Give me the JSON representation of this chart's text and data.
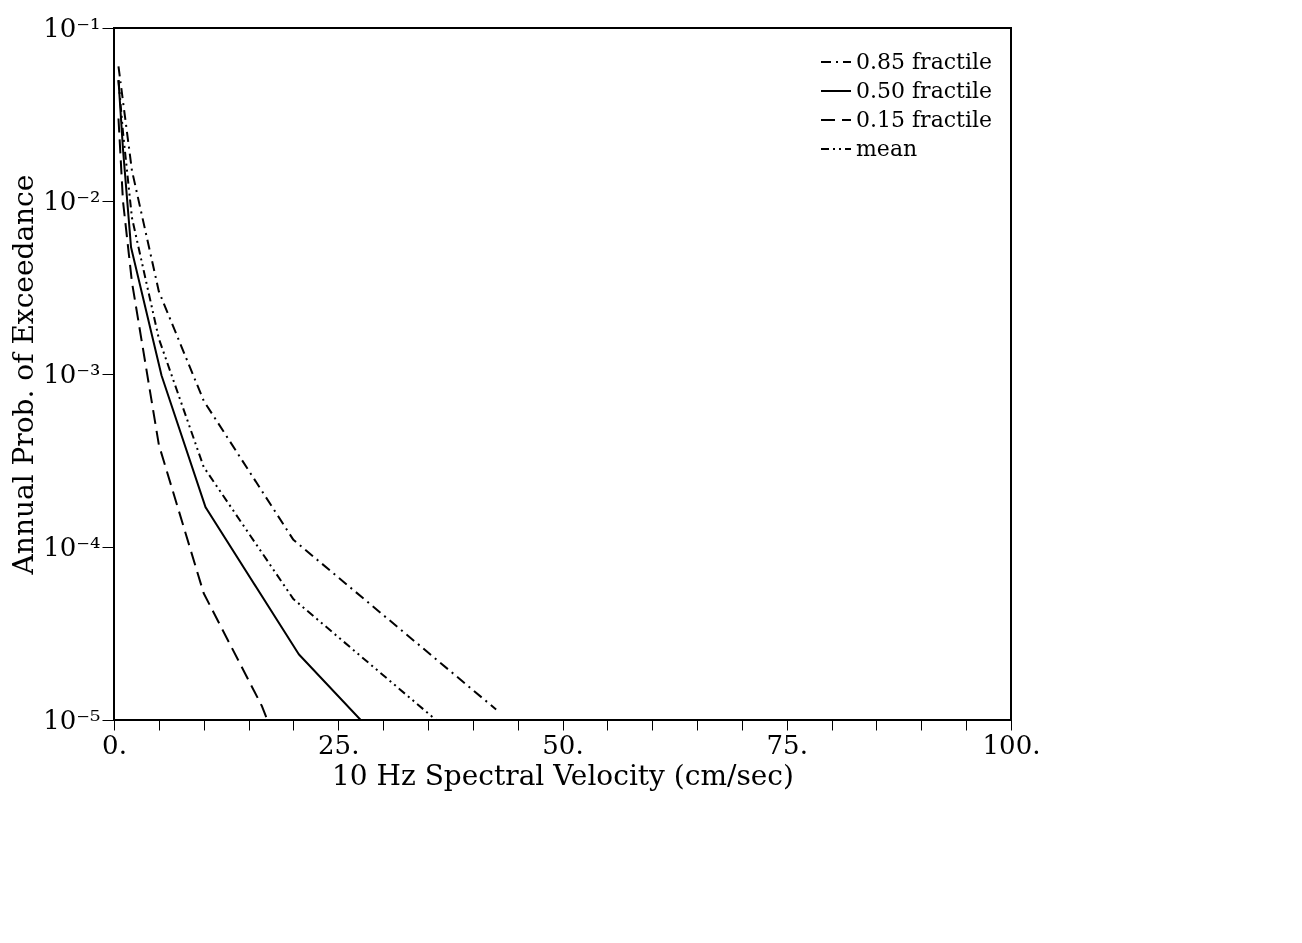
{
  "chart_data": {
    "type": "line",
    "xlabel": "10 Hz Spectral Velocity (cm/sec)",
    "ylabel": "Annual Prob. of Exceedance",
    "log": "y",
    "xlim": [
      0,
      100
    ],
    "ylim": [
      1e-05,
      0.1
    ],
    "xticks": [
      {
        "value": 0,
        "label": "0."
      },
      {
        "value": 5,
        "label": null
      },
      {
        "value": 10,
        "label": null
      },
      {
        "value": 15,
        "label": null
      },
      {
        "value": 20,
        "label": null
      },
      {
        "value": 25,
        "label": "25."
      },
      {
        "value": 30,
        "label": null
      },
      {
        "value": 35,
        "label": null
      },
      {
        "value": 40,
        "label": null
      },
      {
        "value": 45,
        "label": null
      },
      {
        "value": 50,
        "label": "50."
      },
      {
        "value": 55,
        "label": null
      },
      {
        "value": 60,
        "label": null
      },
      {
        "value": 65,
        "label": null
      },
      {
        "value": 70,
        "label": null
      },
      {
        "value": 75,
        "label": "75."
      },
      {
        "value": 80,
        "label": null
      },
      {
        "value": 85,
        "label": null
      },
      {
        "value": 90,
        "label": null
      },
      {
        "value": 95,
        "label": null
      },
      {
        "value": 100,
        "label": "100."
      }
    ],
    "yticks": [
      {
        "value": 1e-05,
        "label": "10⁻⁵"
      },
      {
        "value": 0.0001,
        "label": "10⁻⁴"
      },
      {
        "value": 0.001,
        "label": "10⁻³"
      },
      {
        "value": 0.01,
        "label": "10⁻²"
      },
      {
        "value": 0.1,
        "label": "10⁻¹"
      }
    ],
    "grid": false,
    "legend": "top right",
    "series": [
      {
        "name": "0.85 fractile",
        "color": "#000000",
        "line_style": "dashdot",
        "x": [
          0.5,
          2,
          5,
          10,
          20,
          42.6
        ],
        "values": [
          0.06,
          0.015,
          0.003,
          0.0007,
          0.00011,
          1.15e-05
        ]
      },
      {
        "name": "0.50 fractile",
        "color": "#000000",
        "line_style": "solid",
        "x": [
          0.5,
          1,
          1.9,
          5.3,
          10.2,
          20.6,
          27.5
        ],
        "values": [
          0.05,
          0.02,
          0.0054,
          0.00098,
          0.00017,
          2.4e-05,
          1e-05
        ]
      },
      {
        "name": "0.15 fractile",
        "color": "#000000",
        "line_style": "dashed",
        "x": [
          0.5,
          1,
          2,
          5,
          10,
          16.5,
          17.1
        ],
        "values": [
          0.03,
          0.01,
          0.0034,
          0.00039,
          5.4e-05,
          1.2e-05,
          1e-05
        ]
      },
      {
        "name": "mean",
        "color": "#000000",
        "line_style": "dashdotdot",
        "x": [
          0.5,
          1,
          2,
          5,
          10,
          20,
          35.9
        ],
        "values": [
          0.05,
          0.025,
          0.008,
          0.0016,
          0.00029,
          5e-05,
          1e-05
        ]
      }
    ]
  }
}
